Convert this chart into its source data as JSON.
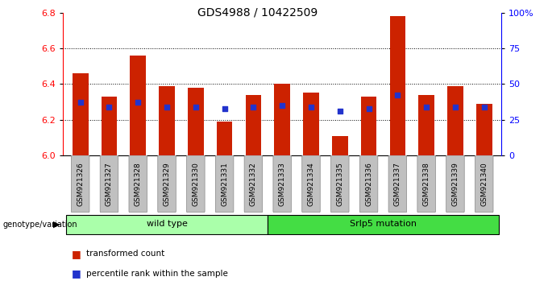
{
  "title": "GDS4988 / 10422509",
  "samples": [
    "GSM921326",
    "GSM921327",
    "GSM921328",
    "GSM921329",
    "GSM921330",
    "GSM921331",
    "GSM921332",
    "GSM921333",
    "GSM921334",
    "GSM921335",
    "GSM921336",
    "GSM921337",
    "GSM921338",
    "GSM921339",
    "GSM921340"
  ],
  "red_values": [
    6.46,
    6.33,
    6.56,
    6.39,
    6.38,
    6.19,
    6.34,
    6.4,
    6.35,
    6.11,
    6.33,
    6.78,
    6.34,
    6.39,
    6.29
  ],
  "blue_values": [
    6.3,
    6.27,
    6.3,
    6.27,
    6.27,
    6.26,
    6.27,
    6.28,
    6.27,
    6.25,
    6.26,
    6.34,
    6.27,
    6.27,
    6.27
  ],
  "ylim_left": [
    6.0,
    6.8
  ],
  "ylim_right": [
    0,
    100
  ],
  "yticks_left": [
    6.0,
    6.2,
    6.4,
    6.6,
    6.8
  ],
  "yticks_right": [
    0,
    25,
    50,
    75,
    100
  ],
  "ytick_labels_right": [
    "0",
    "25",
    "50",
    "75",
    "100%"
  ],
  "grid_vals": [
    6.2,
    6.4,
    6.6
  ],
  "bar_color": "#CC2200",
  "dot_color": "#2233CC",
  "bar_width": 0.55,
  "group1_label": "wild type",
  "group2_label": "Srlp5 mutation",
  "group1_indices": [
    0,
    1,
    2,
    3,
    4,
    5,
    6
  ],
  "group2_indices": [
    7,
    8,
    9,
    10,
    11,
    12,
    13,
    14
  ],
  "group1_color": "#aaffaa",
  "group2_color": "#44dd44",
  "genotype_label": "genotype/variation",
  "legend1": "transformed count",
  "legend2": "percentile rank within the sample",
  "xtick_bg_color": "#c0c0c0",
  "xtick_border_color": "#888888"
}
